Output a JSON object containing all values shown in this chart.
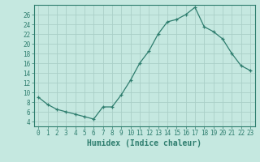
{
  "x": [
    0,
    1,
    2,
    3,
    4,
    5,
    6,
    7,
    8,
    9,
    10,
    11,
    12,
    13,
    14,
    15,
    16,
    17,
    18,
    19,
    20,
    21,
    22,
    23
  ],
  "y": [
    9,
    7.5,
    6.5,
    6,
    5.5,
    5,
    4.5,
    7,
    7,
    9.5,
    12.5,
    16,
    18.5,
    22,
    24.5,
    25,
    26,
    27.5,
    23.5,
    22.5,
    21,
    18,
    15.5,
    14.5
  ],
  "line_color": "#2E7D6E",
  "marker": "+",
  "marker_size": 3,
  "bg_color": "#C5E8E0",
  "grid_color": "#AACFC8",
  "axis_color": "#2E7D6E",
  "xlabel": "Humidex (Indice chaleur)",
  "xlim": [
    -0.5,
    23.5
  ],
  "ylim": [
    3,
    28
  ],
  "yticks": [
    4,
    6,
    8,
    10,
    12,
    14,
    16,
    18,
    20,
    22,
    24,
    26
  ],
  "xticks": [
    0,
    1,
    2,
    3,
    4,
    5,
    6,
    7,
    8,
    9,
    10,
    11,
    12,
    13,
    14,
    15,
    16,
    17,
    18,
    19,
    20,
    21,
    22,
    23
  ],
  "tick_fontsize": 5.5,
  "label_fontsize": 7
}
